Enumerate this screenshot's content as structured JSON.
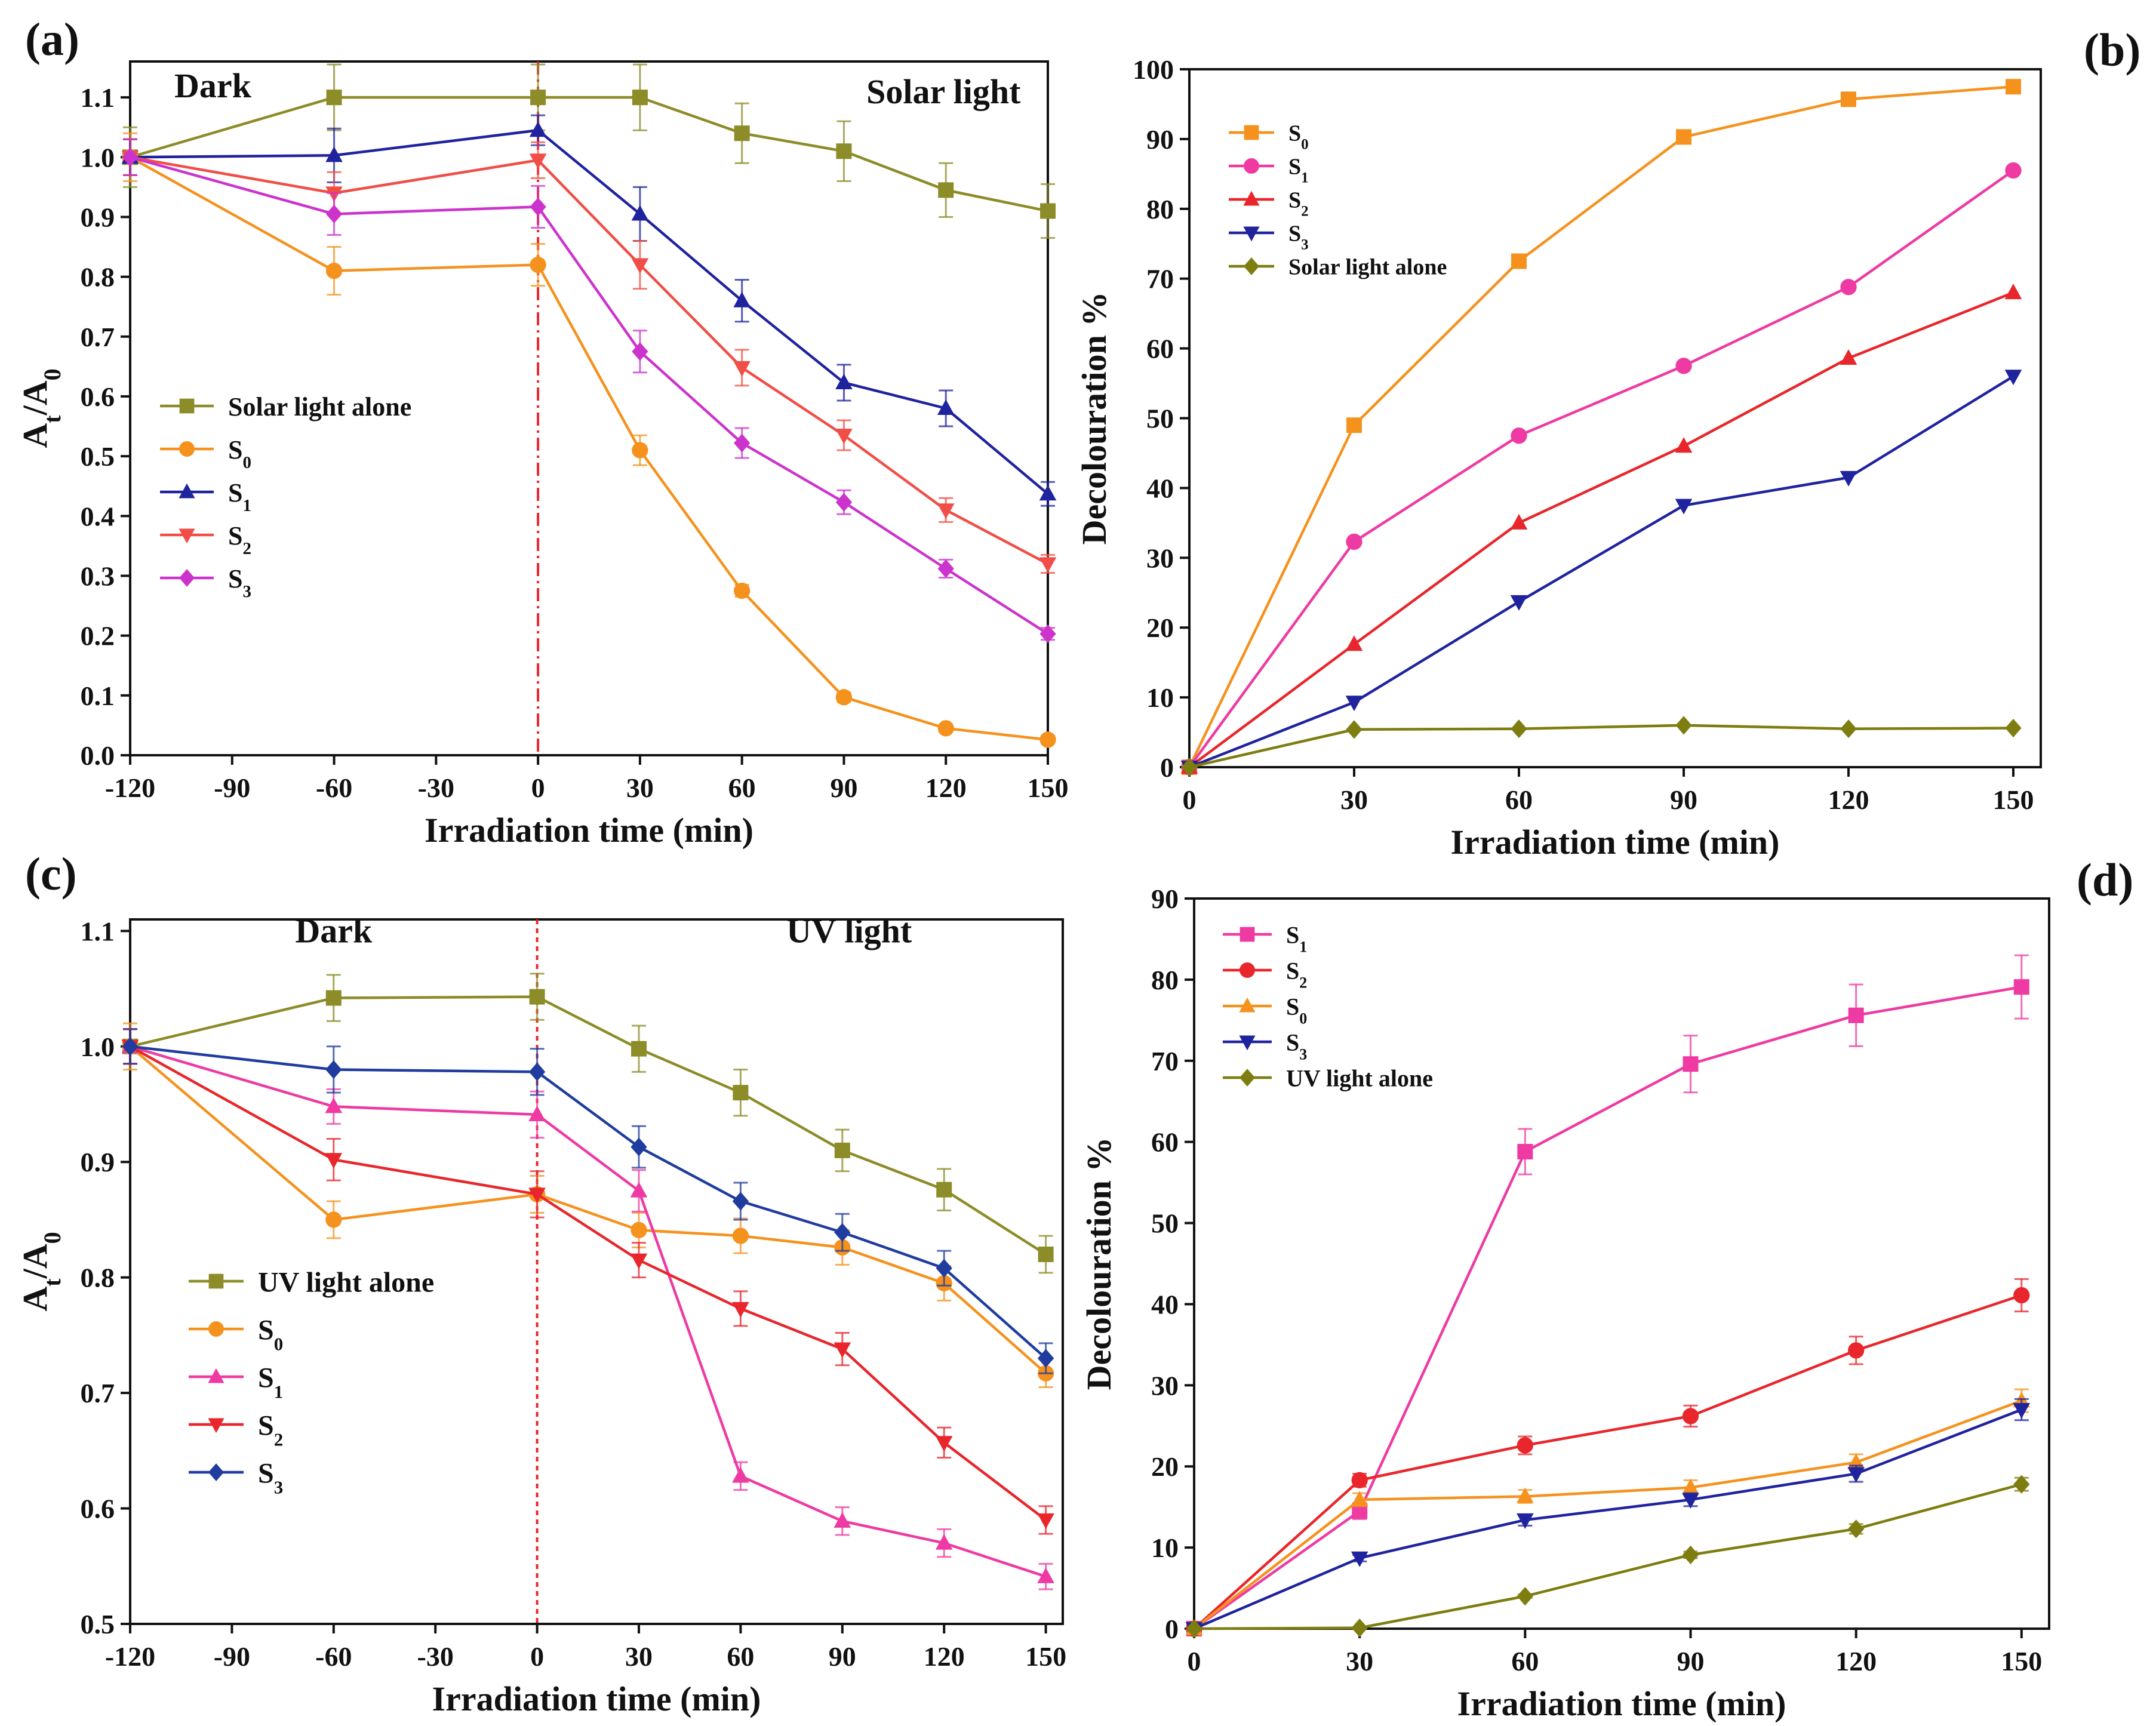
{
  "panels": [
    {
      "id": "a",
      "panel_label": "(a)",
      "chart_data": {
        "type": "line",
        "title": "",
        "xlabel": "Irradiation time (min)",
        "ylabel": "A_t/A_0",
        "x": [
          -120,
          -60,
          0,
          30,
          60,
          90,
          120,
          150
        ],
        "xticks": [
          -120,
          -90,
          -60,
          -30,
          0,
          30,
          60,
          90,
          120,
          150
        ],
        "xlim": [
          -120,
          150
        ],
        "yticks": [
          0.0,
          0.1,
          0.2,
          0.3,
          0.4,
          0.5,
          0.6,
          0.7,
          0.8,
          0.9,
          1.0,
          1.1
        ],
        "ylim": [
          0.0,
          1.16
        ],
        "ytick_decimals": 1,
        "vline_x": 0,
        "vline_color": "#e8262b",
        "region_labels": [
          {
            "text": "Dark",
            "at_x": -107,
            "at_y": 1.1,
            "align": "start"
          },
          {
            "text": "Solar light",
            "at_x": 142,
            "at_y": 1.09,
            "align": "end"
          }
        ],
        "legend_position": "middle-left",
        "series": [
          {
            "name": "Solar light alone",
            "sub": "",
            "color": "#8c8c28",
            "marker": "square",
            "values": [
              1.0,
              1.1,
              1.1,
              1.1,
              1.04,
              1.01,
              0.945,
              0.91
            ],
            "errors": [
              0.05,
              0.055,
              0.055,
              0.055,
              0.05,
              0.05,
              0.045,
              0.045
            ]
          },
          {
            "name": "S",
            "sub": "0",
            "color": "#f5921e",
            "marker": "circle",
            "values": [
              1.0,
              0.81,
              0.82,
              0.51,
              0.275,
              0.097,
              0.045,
              0.026
            ],
            "errors": [
              0.04,
              0.04,
              0.035,
              0.025,
              0.01,
              0.008,
              0.006,
              0.005
            ]
          },
          {
            "name": "S",
            "sub": "1",
            "color": "#1f239e",
            "marker": "triangle-up",
            "values": [
              1.0,
              1.003,
              1.045,
              0.905,
              0.76,
              0.623,
              0.58,
              0.437
            ],
            "errors": [
              0.03,
              0.045,
              0.025,
              0.045,
              0.035,
              0.03,
              0.03,
              0.02
            ]
          },
          {
            "name": "S",
            "sub": "2",
            "color": "#f04e46",
            "marker": "triangle-down",
            "values": [
              1.0,
              0.94,
              0.995,
              0.82,
              0.648,
              0.535,
              0.41,
              0.32
            ],
            "errors": [
              0.03,
              0.035,
              0.03,
              0.04,
              0.03,
              0.025,
              0.02,
              0.015
            ]
          },
          {
            "name": "S",
            "sub": "3",
            "color": "#cc33cc",
            "marker": "diamond",
            "values": [
              1.0,
              0.905,
              0.917,
              0.675,
              0.522,
              0.423,
              0.312,
              0.203
            ],
            "errors": [
              0.03,
              0.035,
              0.035,
              0.035,
              0.025,
              0.02,
              0.015,
              0.01
            ]
          }
        ]
      }
    },
    {
      "id": "b",
      "panel_label": "(b)",
      "chart_data": {
        "type": "line",
        "title": "",
        "xlabel": "Irradiation time (min)",
        "ylabel": "Decolouration %",
        "x": [
          0,
          30,
          60,
          90,
          120,
          150
        ],
        "xticks": [
          0,
          30,
          60,
          90,
          120,
          150
        ],
        "xlim": [
          0,
          155
        ],
        "yticks": [
          0,
          10,
          20,
          30,
          40,
          50,
          60,
          70,
          80,
          90,
          100
        ],
        "ylim": [
          0,
          100
        ],
        "ytick_decimals": 0,
        "legend_position": "top-left",
        "series": [
          {
            "name": "S",
            "sub": "0",
            "color": "#f5921e",
            "marker": "square",
            "values": [
              0,
              49,
              72.5,
              90.3,
              95.7,
              97.5
            ]
          },
          {
            "name": "S",
            "sub": "1",
            "color": "#ee3aa2",
            "marker": "circle",
            "values": [
              0,
              32.3,
              47.5,
              57.5,
              68.8,
              85.5
            ]
          },
          {
            "name": "S",
            "sub": "2",
            "color": "#e8262b",
            "marker": "triangle-up",
            "values": [
              0,
              17.6,
              35,
              46,
              58.6,
              68
            ]
          },
          {
            "name": "S",
            "sub": "3",
            "color": "#1f239e",
            "marker": "triangle-down",
            "values": [
              0,
              9.3,
              23.7,
              37.5,
              41.5,
              56
            ]
          },
          {
            "name": "Solar light alone",
            "sub": "",
            "color": "#7d7d10",
            "marker": "diamond",
            "values": [
              0,
              5.4,
              5.5,
              6,
              5.5,
              5.6
            ]
          }
        ]
      }
    },
    {
      "id": "c",
      "panel_label": "(c)",
      "chart_data": {
        "type": "line",
        "title": "",
        "xlabel": "Irradiation time (min)",
        "ylabel": "A_t/A_0",
        "x": [
          -120,
          -60,
          0,
          30,
          60,
          90,
          120,
          150
        ],
        "xticks": [
          -120,
          -90,
          -60,
          -30,
          0,
          30,
          60,
          90,
          120,
          150
        ],
        "xlim": [
          -120,
          155
        ],
        "yticks": [
          0.5,
          0.6,
          0.7,
          0.8,
          0.9,
          1.0,
          1.1
        ],
        "ylim": [
          0.5,
          1.11
        ],
        "ytick_decimals": 1,
        "vline_x": 0,
        "vline_color": "#e8262b",
        "region_labels": [
          {
            "text": "Dark",
            "at_x": -60,
            "at_y": 1.09,
            "align": "middle"
          },
          {
            "text": "UV light",
            "at_x": 92,
            "at_y": 1.09,
            "align": "middle"
          }
        ],
        "legend_position": "bottom-left",
        "series": [
          {
            "name": "UV light alone",
            "sub": "",
            "color": "#8c8c28",
            "marker": "square",
            "values": [
              1.0,
              1.042,
              1.043,
              0.998,
              0.96,
              0.91,
              0.876,
              0.82
            ],
            "errors": [
              0.015,
              0.02,
              0.02,
              0.02,
              0.02,
              0.018,
              0.018,
              0.016
            ]
          },
          {
            "name": "S",
            "sub": "0",
            "color": "#f5921e",
            "marker": "circle",
            "values": [
              1.0,
              0.85,
              0.872,
              0.841,
              0.836,
              0.826,
              0.795,
              0.717
            ],
            "errors": [
              0.02,
              0.016,
              0.016,
              0.015,
              0.015,
              0.015,
              0.015,
              0.012
            ]
          },
          {
            "name": "S",
            "sub": "1",
            "color": "#ee3aa2",
            "marker": "triangle-up",
            "values": [
              1.0,
              0.948,
              0.941,
              0.875,
              0.628,
              0.589,
              0.57,
              0.541
            ],
            "errors": [
              0.015,
              0.015,
              0.02,
              0.018,
              0.012,
              0.012,
              0.012,
              0.011
            ]
          },
          {
            "name": "S",
            "sub": "2",
            "color": "#e8262b",
            "marker": "triangle-down",
            "values": [
              1.0,
              0.902,
              0.872,
              0.815,
              0.773,
              0.738,
              0.657,
              0.59
            ],
            "errors": [
              0.015,
              0.018,
              0.02,
              0.015,
              0.015,
              0.014,
              0.013,
              0.012
            ]
          },
          {
            "name": "S",
            "sub": "3",
            "color": "#1f3c9e",
            "marker": "diamond",
            "values": [
              1.0,
              0.98,
              0.978,
              0.913,
              0.866,
              0.839,
              0.808,
              0.73
            ],
            "errors": [
              0.015,
              0.02,
              0.02,
              0.018,
              0.016,
              0.016,
              0.015,
              0.013
            ]
          }
        ]
      }
    },
    {
      "id": "d",
      "panel_label": "(d)",
      "chart_data": {
        "type": "line",
        "title": "",
        "xlabel": "Irradiation time (min)",
        "ylabel": "Decolouration %",
        "x": [
          0,
          30,
          60,
          90,
          120,
          150
        ],
        "xticks": [
          0,
          30,
          60,
          90,
          120,
          150
        ],
        "xlim": [
          0,
          155
        ],
        "yticks": [
          0,
          10,
          20,
          30,
          40,
          50,
          60,
          70,
          80,
          90
        ],
        "ylim": [
          0,
          90
        ],
        "ytick_decimals": 0,
        "legend_position": "top-left",
        "series": [
          {
            "name": "S",
            "sub": "1",
            "color": "#ee3aa2",
            "marker": "square",
            "values": [
              0,
              14.5,
              58.8,
              69.6,
              75.6,
              79.1
            ],
            "errors": [
              0,
              1.0,
              2.8,
              3.5,
              3.8,
              3.9
            ]
          },
          {
            "name": "S",
            "sub": "2",
            "color": "#e8262b",
            "marker": "circle",
            "values": [
              0,
              18.3,
              22.6,
              26.2,
              34.3,
              41.1
            ],
            "errors": [
              0,
              0.8,
              1.1,
              1.3,
              1.7,
              2.0
            ]
          },
          {
            "name": "S",
            "sub": "0",
            "color": "#f5921e",
            "marker": "triangle-up",
            "values": [
              0,
              15.9,
              16.3,
              17.4,
              20.5,
              28.1
            ],
            "errors": [
              0,
              0.8,
              0.8,
              0.9,
              1.0,
              1.4
            ]
          },
          {
            "name": "S",
            "sub": "3",
            "color": "#1f239e",
            "marker": "triangle-down",
            "values": [
              0,
              8.7,
              13.4,
              15.9,
              19.1,
              27.0
            ],
            "errors": [
              0,
              0.4,
              0.7,
              0.8,
              1.0,
              1.3
            ]
          },
          {
            "name": "UV light alone",
            "sub": "",
            "color": "#7d7d10",
            "marker": "diamond",
            "values": [
              0,
              0.1,
              4.0,
              9.1,
              12.3,
              17.8
            ],
            "errors": [
              0,
              0,
              0.2,
              0.4,
              0.6,
              0.8
            ]
          }
        ]
      }
    }
  ]
}
